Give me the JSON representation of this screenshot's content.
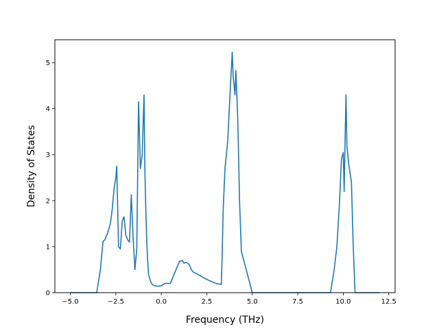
{
  "chart_data": {
    "type": "line",
    "title": "",
    "xlabel": "Frequency (THz)",
    "ylabel": "Density of States",
    "xlim": [
      -5.85,
      12.85
    ],
    "ylim": [
      0,
      5.5
    ],
    "xticks": [
      -5.0,
      -2.5,
      0.0,
      2.5,
      5.0,
      7.5,
      10.0,
      12.5
    ],
    "xtick_labels": [
      "−5.0",
      "−2.5",
      "0.0",
      "2.5",
      "5.0",
      "7.5",
      "10.0",
      "12.5"
    ],
    "yticks": [
      0,
      1,
      2,
      3,
      4,
      5
    ],
    "ytick_labels": [
      "0",
      "1",
      "2",
      "3",
      "4",
      "5"
    ],
    "grid": false,
    "legend": "none",
    "series": [
      {
        "color": "#1f77b4",
        "x": [
          -5.0,
          -3.55,
          -3.35,
          -3.2,
          -3.1,
          -2.95,
          -2.8,
          -2.7,
          -2.6,
          -2.5,
          -2.45,
          -2.35,
          -2.25,
          -2.15,
          -2.05,
          -1.95,
          -1.85,
          -1.75,
          -1.65,
          -1.55,
          -1.45,
          -1.35,
          -1.25,
          -1.15,
          -1.05,
          -0.95,
          -0.9,
          -0.85,
          -0.8,
          -0.75,
          -0.7,
          -0.6,
          -0.5,
          -0.35,
          -0.2,
          0.0,
          0.2,
          0.5,
          0.7,
          1.0,
          1.15,
          1.25,
          1.35,
          1.45,
          1.55,
          1.65,
          1.75,
          1.9,
          2.0,
          2.3,
          2.6,
          3.0,
          3.3,
          3.35,
          3.4,
          3.5,
          3.65,
          3.8,
          3.9,
          3.95,
          4.05,
          4.1,
          4.2,
          4.3,
          4.4,
          5.0,
          9.0,
          9.3,
          9.5,
          9.65,
          9.8,
          9.9,
          10.0,
          10.05,
          10.1,
          10.15,
          10.2,
          10.3,
          10.45,
          10.55,
          10.65,
          10.7,
          12.0
        ],
        "y": [
          0,
          0,
          0.5,
          1.12,
          1.15,
          1.3,
          1.5,
          1.8,
          2.25,
          2.5,
          2.75,
          1.0,
          0.95,
          1.55,
          1.65,
          1.25,
          1.15,
          1.1,
          2.13,
          1.2,
          0.5,
          0.95,
          4.15,
          2.7,
          3.0,
          4.3,
          2.6,
          1.8,
          1.1,
          0.7,
          0.4,
          0.25,
          0.18,
          0.15,
          0.14,
          0.15,
          0.2,
          0.2,
          0.4,
          0.68,
          0.7,
          0.64,
          0.66,
          0.64,
          0.6,
          0.5,
          0.45,
          0.42,
          0.4,
          0.33,
          0.27,
          0.2,
          0.18,
          0.9,
          1.8,
          2.7,
          3.3,
          4.5,
          5.23,
          4.7,
          4.3,
          4.83,
          3.8,
          2.0,
          0.9,
          0,
          0,
          0,
          0.5,
          1.0,
          2.0,
          2.9,
          3.05,
          2.2,
          3.3,
          4.3,
          3.2,
          2.8,
          2.4,
          1.0,
          0,
          0,
          0
        ]
      }
    ]
  }
}
